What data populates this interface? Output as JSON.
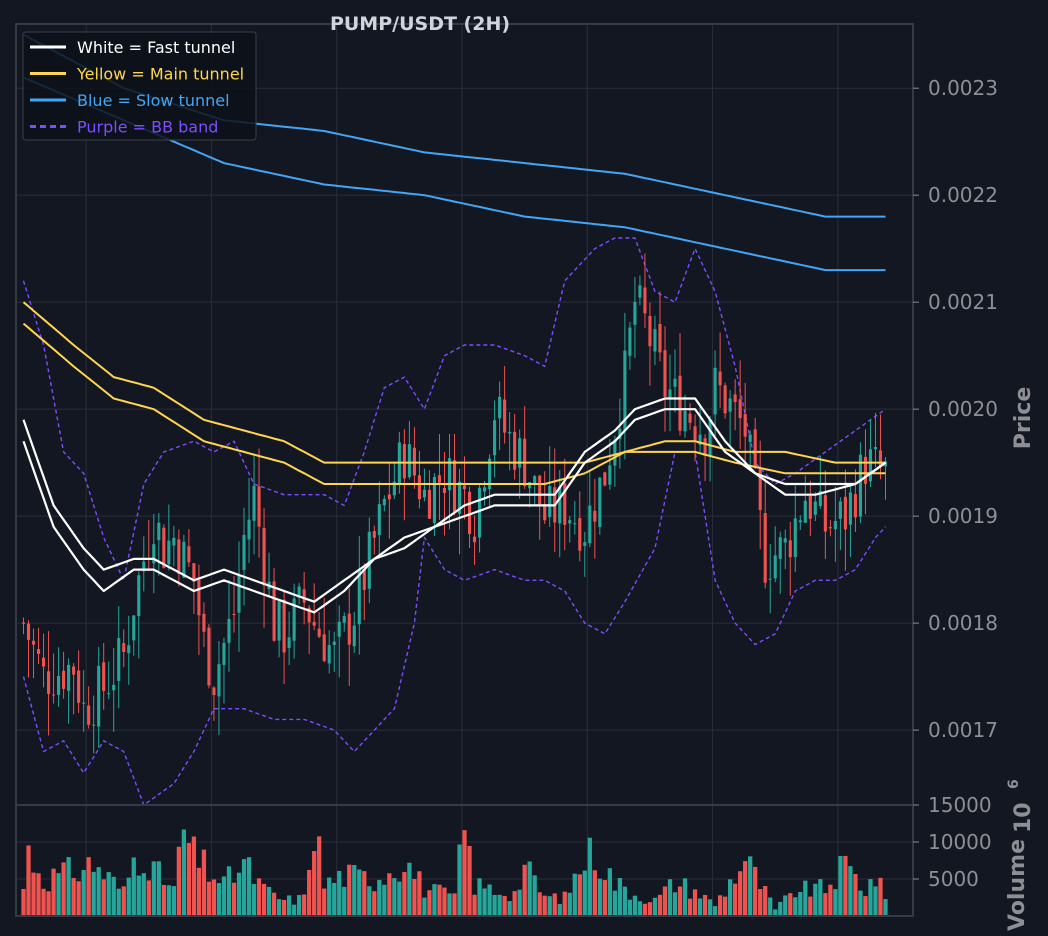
{
  "chart_data": {
    "type": "candlestick",
    "title": "PUMP/USDT (2H)",
    "colors": {
      "background": "#131722",
      "grid": "#2a2e39",
      "axis_text": "#8e8f94",
      "up_candle": "#26a69a",
      "down_candle": "#ef5350",
      "fast_tunnel": "#ffffff",
      "main_tunnel": "#ffd54f",
      "slow_tunnel": "#42a5f5",
      "bb_band": "#7c4dff",
      "title": "#d1d4dc"
    },
    "legend": {
      "placement": "top-left",
      "items": [
        {
          "label": "White = Fast tunnel",
          "color": "#ffffff",
          "style": "solid"
        },
        {
          "label": "Yellow = Main tunnel",
          "color": "#ffd54f",
          "style": "solid"
        },
        {
          "label": "Blue = Slow tunnel",
          "color": "#42a5f5",
          "style": "solid"
        },
        {
          "label": "Purple = BB band",
          "color": "#7c4dff",
          "style": "dashed"
        }
      ]
    },
    "price_panel": {
      "ylabel": "Price",
      "ylim": [
        0.00163,
        0.00236
      ],
      "yticks": [
        "0.0017",
        "0.0018",
        "0.0019",
        "0.0020",
        "0.0021",
        "0.0022",
        "0.0023"
      ],
      "grid": true
    },
    "volume_panel": {
      "ylabel": "Volume",
      "scale_label": "10",
      "scale_exponent": "6",
      "ylim": [
        0,
        15000
      ],
      "yticks": [
        "5000",
        "10000",
        "15000"
      ],
      "grid": true
    },
    "candle_count": 173,
    "price_keypoints": [
      [
        0,
        0.0018
      ],
      [
        4,
        0.00175
      ],
      [
        10,
        0.00176
      ],
      [
        12,
        0.00172
      ],
      [
        16,
        0.00174
      ],
      [
        20,
        0.00177
      ],
      [
        22,
        0.00182
      ],
      [
        26,
        0.0019
      ],
      [
        28,
        0.00187
      ],
      [
        30,
        0.00188
      ],
      [
        32,
        0.00186
      ],
      [
        34,
        0.00184
      ],
      [
        36,
        0.00178
      ],
      [
        38,
        0.00175
      ],
      [
        42,
        0.00181
      ],
      [
        44,
        0.00188
      ],
      [
        46,
        0.00192
      ],
      [
        48,
        0.00186
      ],
      [
        50,
        0.0018
      ],
      [
        52,
        0.00179
      ],
      [
        56,
        0.00182
      ],
      [
        58,
        0.0018
      ],
      [
        62,
        0.00177
      ],
      [
        66,
        0.00181
      ],
      [
        72,
        0.00191
      ],
      [
        76,
        0.00196
      ],
      [
        80,
        0.00192
      ],
      [
        84,
        0.00194
      ],
      [
        88,
        0.00192
      ],
      [
        90,
        0.0019
      ],
      [
        94,
        0.002
      ],
      [
        96,
        0.00198
      ],
      [
        100,
        0.00195
      ],
      [
        104,
        0.0019
      ],
      [
        108,
        0.00191
      ],
      [
        112,
        0.00189
      ],
      [
        116,
        0.00194
      ],
      [
        120,
        0.00203
      ],
      [
        122,
        0.0021
      ],
      [
        124,
        0.00208
      ],
      [
        128,
        0.00202
      ],
      [
        132,
        0.002
      ],
      [
        134,
        0.00199
      ],
      [
        136,
        0.00198
      ],
      [
        138,
        0.00202
      ],
      [
        140,
        0.00201
      ],
      [
        144,
        0.00198
      ],
      [
        146,
        0.00192
      ],
      [
        148,
        0.00186
      ],
      [
        152,
        0.00187
      ],
      [
        156,
        0.00192
      ],
      [
        160,
        0.00189
      ],
      [
        164,
        0.0019
      ],
      [
        168,
        0.00195
      ],
      [
        172,
        0.00194
      ]
    ],
    "volume_keypoints": [
      [
        0,
        4000
      ],
      [
        1,
        9200
      ],
      [
        4,
        5200
      ],
      [
        10,
        6400
      ],
      [
        14,
        7400
      ],
      [
        20,
        3400
      ],
      [
        22,
        8100
      ],
      [
        24,
        9200
      ],
      [
        26,
        6400
      ],
      [
        30,
        3800
      ],
      [
        32,
        12100
      ],
      [
        34,
        8400
      ],
      [
        40,
        4500
      ],
      [
        44,
        7400
      ],
      [
        48,
        3700
      ],
      [
        52,
        2200
      ],
      [
        56,
        2500
      ],
      [
        58,
        13700
      ],
      [
        60,
        4500
      ],
      [
        64,
        5800
      ],
      [
        70,
        5300
      ],
      [
        74,
        7100
      ],
      [
        76,
        8100
      ],
      [
        80,
        3900
      ],
      [
        86,
        2800
      ],
      [
        88,
        12600
      ],
      [
        90,
        4400
      ],
      [
        94,
        3700
      ],
      [
        98,
        3200
      ],
      [
        100,
        6900
      ],
      [
        104,
        2700
      ],
      [
        108,
        2600
      ],
      [
        112,
        8200
      ],
      [
        114,
        9100
      ],
      [
        118,
        4700
      ],
      [
        122,
        3100
      ],
      [
        126,
        2200
      ],
      [
        130,
        4800
      ],
      [
        134,
        3600
      ],
      [
        138,
        1600
      ],
      [
        144,
        8100
      ],
      [
        150,
        900
      ],
      [
        154,
        3600
      ],
      [
        160,
        3900
      ],
      [
        164,
        7200
      ],
      [
        168,
        3800
      ],
      [
        170,
        5600
      ],
      [
        172,
        2400
      ]
    ],
    "fast_tunnel": {
      "upper": [
        [
          0,
          0.00199
        ],
        [
          6,
          0.00191
        ],
        [
          12,
          0.00187
        ],
        [
          16,
          0.00185
        ],
        [
          22,
          0.00186
        ],
        [
          26,
          0.00186
        ],
        [
          34,
          0.00184
        ],
        [
          40,
          0.00185
        ],
        [
          46,
          0.00184
        ],
        [
          52,
          0.00183
        ],
        [
          58,
          0.00182
        ],
        [
          64,
          0.00184
        ],
        [
          70,
          0.00186
        ],
        [
          76,
          0.00188
        ],
        [
          82,
          0.00189
        ],
        [
          88,
          0.00191
        ],
        [
          94,
          0.00192
        ],
        [
          100,
          0.00192
        ],
        [
          106,
          0.00192
        ],
        [
          112,
          0.00196
        ],
        [
          118,
          0.00198
        ],
        [
          122,
          0.002
        ],
        [
          128,
          0.00201
        ],
        [
          134,
          0.00201
        ],
        [
          140,
          0.00197
        ],
        [
          146,
          0.00194
        ],
        [
          152,
          0.00193
        ],
        [
          158,
          0.00193
        ],
        [
          166,
          0.00193
        ],
        [
          172,
          0.00195
        ]
      ],
      "lower": [
        [
          0,
          0.00197
        ],
        [
          6,
          0.00189
        ],
        [
          12,
          0.00185
        ],
        [
          16,
          0.00183
        ],
        [
          22,
          0.00185
        ],
        [
          26,
          0.00185
        ],
        [
          34,
          0.00183
        ],
        [
          40,
          0.00184
        ],
        [
          46,
          0.00183
        ],
        [
          52,
          0.00182
        ],
        [
          58,
          0.00181
        ],
        [
          64,
          0.00183
        ],
        [
          70,
          0.00186
        ],
        [
          76,
          0.00187
        ],
        [
          82,
          0.00189
        ],
        [
          88,
          0.0019
        ],
        [
          94,
          0.00191
        ],
        [
          100,
          0.00191
        ],
        [
          106,
          0.00191
        ],
        [
          112,
          0.00195
        ],
        [
          118,
          0.00197
        ],
        [
          122,
          0.00199
        ],
        [
          128,
          0.002
        ],
        [
          134,
          0.002
        ],
        [
          140,
          0.00196
        ],
        [
          146,
          0.00194
        ],
        [
          152,
          0.00192
        ],
        [
          158,
          0.00192
        ],
        [
          166,
          0.00193
        ],
        [
          172,
          0.00195
        ]
      ]
    },
    "main_tunnel": {
      "upper": [
        [
          0,
          0.0021
        ],
        [
          10,
          0.00206
        ],
        [
          18,
          0.00203
        ],
        [
          26,
          0.00202
        ],
        [
          36,
          0.00199
        ],
        [
          44,
          0.00198
        ],
        [
          52,
          0.00197
        ],
        [
          60,
          0.00195
        ],
        [
          70,
          0.00195
        ],
        [
          80,
          0.00195
        ],
        [
          88,
          0.00195
        ],
        [
          96,
          0.00195
        ],
        [
          104,
          0.00195
        ],
        [
          112,
          0.00195
        ],
        [
          120,
          0.00196
        ],
        [
          128,
          0.00197
        ],
        [
          134,
          0.00197
        ],
        [
          142,
          0.00196
        ],
        [
          152,
          0.00196
        ],
        [
          162,
          0.00195
        ],
        [
          172,
          0.00195
        ]
      ],
      "lower": [
        [
          0,
          0.00208
        ],
        [
          10,
          0.00204
        ],
        [
          18,
          0.00201
        ],
        [
          26,
          0.002
        ],
        [
          36,
          0.00197
        ],
        [
          44,
          0.00196
        ],
        [
          52,
          0.00195
        ],
        [
          60,
          0.00193
        ],
        [
          70,
          0.00193
        ],
        [
          80,
          0.00193
        ],
        [
          88,
          0.00193
        ],
        [
          96,
          0.00193
        ],
        [
          104,
          0.00193
        ],
        [
          112,
          0.00194
        ],
        [
          120,
          0.00196
        ],
        [
          128,
          0.00196
        ],
        [
          134,
          0.00196
        ],
        [
          142,
          0.00195
        ],
        [
          152,
          0.00194
        ],
        [
          162,
          0.00194
        ],
        [
          172,
          0.00194
        ]
      ]
    },
    "slow_tunnel": {
      "upper": [
        [
          0,
          0.00235
        ],
        [
          20,
          0.0023
        ],
        [
          40,
          0.00227
        ],
        [
          60,
          0.00226
        ],
        [
          80,
          0.00224
        ],
        [
          100,
          0.00223
        ],
        [
          120,
          0.00222
        ],
        [
          140,
          0.0022
        ],
        [
          160,
          0.00218
        ],
        [
          172,
          0.00218
        ]
      ],
      "lower": [
        [
          0,
          0.00231
        ],
        [
          20,
          0.00227
        ],
        [
          40,
          0.00223
        ],
        [
          60,
          0.00221
        ],
        [
          80,
          0.0022
        ],
        [
          100,
          0.00218
        ],
        [
          120,
          0.00217
        ],
        [
          140,
          0.00215
        ],
        [
          160,
          0.00213
        ],
        [
          172,
          0.00213
        ]
      ]
    },
    "bb_band": {
      "upper": [
        [
          0,
          0.00212
        ],
        [
          4,
          0.00206
        ],
        [
          8,
          0.00196
        ],
        [
          12,
          0.00194
        ],
        [
          16,
          0.00188
        ],
        [
          20,
          0.00184
        ],
        [
          24,
          0.00193
        ],
        [
          28,
          0.00196
        ],
        [
          34,
          0.00197
        ],
        [
          38,
          0.00196
        ],
        [
          42,
          0.00197
        ],
        [
          46,
          0.00193
        ],
        [
          52,
          0.00192
        ],
        [
          60,
          0.00192
        ],
        [
          64,
          0.00191
        ],
        [
          68,
          0.00196
        ],
        [
          72,
          0.00202
        ],
        [
          76,
          0.00203
        ],
        [
          80,
          0.002
        ],
        [
          84,
          0.00205
        ],
        [
          88,
          0.00206
        ],
        [
          94,
          0.00206
        ],
        [
          100,
          0.00205
        ],
        [
          104,
          0.00204
        ],
        [
          108,
          0.00212
        ],
        [
          114,
          0.00215
        ],
        [
          118,
          0.00216
        ],
        [
          122,
          0.00216
        ],
        [
          126,
          0.00211
        ],
        [
          130,
          0.0021
        ],
        [
          134,
          0.00215
        ],
        [
          138,
          0.00211
        ],
        [
          142,
          0.00204
        ],
        [
          146,
          0.00195
        ],
        [
          150,
          0.00193
        ],
        [
          154,
          0.00194
        ],
        [
          160,
          0.00196
        ],
        [
          166,
          0.00198
        ],
        [
          172,
          0.002
        ]
      ],
      "lower": [
        [
          0,
          0.00175
        ],
        [
          4,
          0.00168
        ],
        [
          8,
          0.00169
        ],
        [
          12,
          0.00166
        ],
        [
          16,
          0.00169
        ],
        [
          20,
          0.00168
        ],
        [
          24,
          0.00163
        ],
        [
          30,
          0.00165
        ],
        [
          34,
          0.00168
        ],
        [
          38,
          0.00172
        ],
        [
          44,
          0.00172
        ],
        [
          50,
          0.00171
        ],
        [
          56,
          0.00171
        ],
        [
          62,
          0.0017
        ],
        [
          66,
          0.00168
        ],
        [
          70,
          0.0017
        ],
        [
          74,
          0.00172
        ],
        [
          78,
          0.0018
        ],
        [
          80,
          0.00188
        ],
        [
          84,
          0.00185
        ],
        [
          88,
          0.00184
        ],
        [
          94,
          0.00185
        ],
        [
          100,
          0.00184
        ],
        [
          104,
          0.00184
        ],
        [
          108,
          0.00183
        ],
        [
          112,
          0.0018
        ],
        [
          116,
          0.00179
        ],
        [
          120,
          0.00182
        ],
        [
          126,
          0.00187
        ],
        [
          130,
          0.00196
        ],
        [
          134,
          0.00196
        ],
        [
          138,
          0.00184
        ],
        [
          142,
          0.0018
        ],
        [
          146,
          0.00178
        ],
        [
          150,
          0.00179
        ],
        [
          154,
          0.00183
        ],
        [
          158,
          0.00184
        ],
        [
          162,
          0.00184
        ],
        [
          166,
          0.00185
        ],
        [
          170,
          0.00188
        ],
        [
          172,
          0.00189
        ]
      ]
    }
  }
}
